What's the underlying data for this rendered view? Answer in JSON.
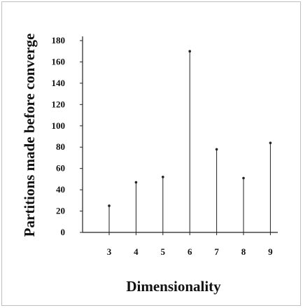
{
  "chart_data": {
    "type": "stem",
    "title": "",
    "xlabel": "Dimensionality",
    "ylabel": "Partitions made before converge",
    "x": [
      3,
      4,
      5,
      6,
      7,
      8,
      9
    ],
    "values": [
      25,
      47,
      52,
      170,
      78,
      51,
      84
    ],
    "xlim": [
      2,
      9
    ],
    "ylim": [
      0,
      180
    ],
    "yticks": [
      0,
      20,
      40,
      60,
      80,
      100,
      120,
      140,
      160,
      180
    ],
    "xticks": [
      3,
      4,
      5,
      6,
      7,
      8,
      9
    ],
    "grid": false,
    "legend": "none",
    "colors": {
      "stem": "#222222",
      "axis": "#222222"
    }
  }
}
